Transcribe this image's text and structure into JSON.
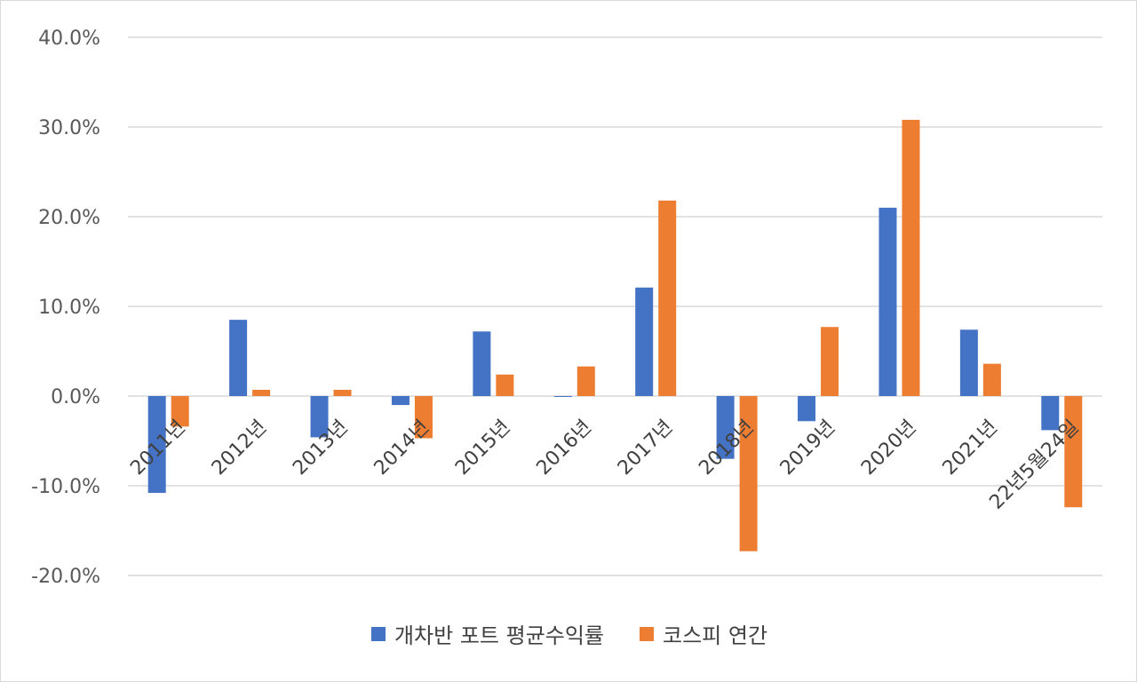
{
  "chart_data": {
    "type": "bar",
    "categories": [
      "2011년",
      "2012년",
      "2013년",
      "2014년",
      "2015년",
      "2016년",
      "2017년",
      "2018년",
      "2019년",
      "2020년",
      "2021년",
      "22년5월24일"
    ],
    "series": [
      {
        "name": "개차반 포트 평균수익률",
        "color": "#4472C4",
        "values": [
          -10.8,
          8.5,
          -4.6,
          -1.0,
          7.2,
          -0.1,
          12.1,
          -7.0,
          -2.8,
          21.0,
          7.4,
          -3.8
        ]
      },
      {
        "name": "코스피 연간",
        "color": "#ED7D31",
        "values": [
          -3.4,
          0.7,
          0.7,
          -4.7,
          2.4,
          3.3,
          21.8,
          -17.3,
          7.7,
          30.8,
          3.6,
          -12.4
        ]
      }
    ],
    "ylim": [
      -20,
      40
    ],
    "yticks": [
      "-20.0%",
      "-10.0%",
      "0.0%",
      "10.0%",
      "20.0%",
      "30.0%",
      "40.0%"
    ],
    "ytick_values": [
      -20,
      -10,
      0,
      10,
      20,
      30,
      40
    ],
    "grid": true,
    "legend_position": "bottom",
    "gridline_color": "#d9d9d9"
  }
}
